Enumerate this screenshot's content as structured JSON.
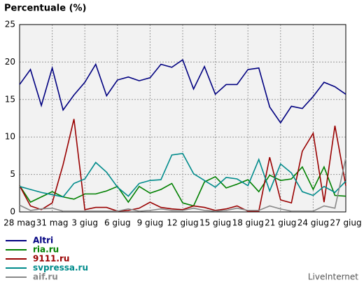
{
  "chart_data": {
    "type": "line",
    "title": "Percentuale (%)",
    "categories": [
      "28 mag",
      null,
      null,
      "31 mag",
      null,
      null,
      "3 giug",
      null,
      null,
      "6 giug",
      null,
      null,
      "9 giug",
      null,
      null,
      "12 giug",
      null,
      null,
      "15 giug",
      null,
      null,
      "18 giug",
      null,
      null,
      "21 giug",
      null,
      null,
      "24 giug",
      null,
      null,
      "27 giug"
    ],
    "ylim": [
      0,
      25
    ],
    "yticks": [
      0,
      5,
      10,
      15,
      20,
      25
    ],
    "grid": true,
    "series": [
      {
        "name": "Altri",
        "color": "#000080",
        "values": [
          17,
          19,
          14.2,
          19.2,
          13.6,
          15.6,
          17.3,
          19.7,
          15.5,
          17.6,
          18,
          17.5,
          17.9,
          19.7,
          19.3,
          20.3,
          16.4,
          19.4,
          15.7,
          17,
          17,
          19,
          19.2,
          14,
          11.9,
          14.1,
          13.8,
          15.4,
          17.3,
          16.7,
          15.7
        ]
      },
      {
        "name": "ria.ru",
        "color": "#008000",
        "values": [
          3.5,
          1.3,
          2,
          2.7,
          2,
          1.7,
          2.4,
          2.4,
          2.8,
          3.4,
          1.3,
          3.4,
          2.5,
          3,
          3.8,
          1.2,
          0.8,
          4,
          4.7,
          3.2,
          3.7,
          4.3,
          2.7,
          4.9,
          4.2,
          4.4,
          6,
          3,
          6,
          2.2,
          2.1
        ]
      },
      {
        "name": "9111.ru",
        "color": "#990000",
        "values": [
          3.5,
          0.8,
          0.3,
          1.2,
          6.3,
          12.4,
          0.3,
          0.6,
          0.6,
          0.1,
          0.2,
          0.5,
          1.3,
          0.6,
          0.4,
          0.3,
          0.8,
          0.6,
          0.2,
          0.4,
          0.8,
          0.1,
          0.1,
          7.3,
          1.6,
          1.2,
          8.1,
          10.5,
          1.3,
          11.5,
          3.5
        ]
      },
      {
        "name": "svpressa.ru",
        "color": "#008b8b",
        "values": [
          3.4,
          3,
          2.6,
          2.3,
          2,
          3.8,
          4.4,
          6.6,
          5.3,
          3.3,
          2.1,
          3.8,
          4.2,
          4.3,
          7.6,
          7.8,
          5.1,
          4.2,
          3.3,
          4.6,
          4.4,
          3.5,
          7,
          2.8,
          6.4,
          5.2,
          2.7,
          2.2,
          3.4,
          2.6,
          4.1
        ]
      },
      {
        "name": "aif.ru",
        "color": "#888888",
        "values": [
          0.9,
          0.2,
          0.4,
          0.5,
          0.1,
          0.1,
          0.1,
          0.1,
          0.1,
          0.1,
          0.4,
          0.1,
          0.2,
          0.4,
          0.2,
          0.2,
          0.5,
          0.2,
          0.1,
          0.2,
          0.5,
          0.2,
          0.2,
          0.8,
          0.4,
          0.1,
          0.1,
          0.1,
          0.8,
          0.5,
          7.2
        ]
      }
    ],
    "credit": "LiveInternet"
  }
}
